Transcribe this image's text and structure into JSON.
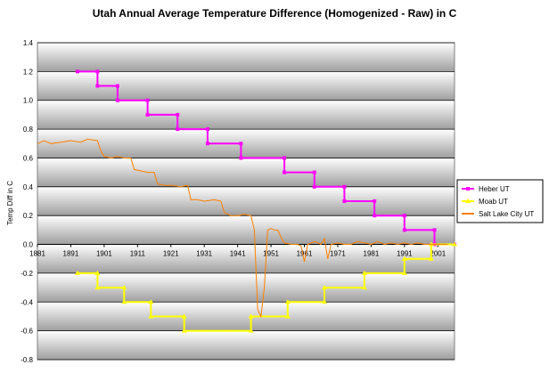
{
  "chart_data": {
    "type": "line",
    "title": "Utah Annual Average Temperature Difference (Homogenized - Raw) in C",
    "xlabel": "",
    "ylabel": "Temp Diff in C",
    "xlim": [
      1881,
      2006
    ],
    "ylim": [
      -0.8,
      1.4
    ],
    "y_ticks": [
      "1.4",
      "1.2",
      "1.0",
      "0.8",
      "0.6",
      "0.4",
      "0.2",
      "0.0",
      "-0.2",
      "-0.4",
      "-0.6",
      "-0.8"
    ],
    "x_ticks": [
      "1881",
      "1891",
      "1901",
      "1911",
      "1921",
      "1931",
      "1941",
      "1951",
      "1961",
      "1971",
      "1981",
      "1991",
      "2001"
    ],
    "grid": true,
    "legend_position": "right",
    "series": [
      {
        "name": "Heber UT",
        "color": "#ff00ff",
        "marker": "square",
        "points": [
          [
            1893,
            1.2
          ],
          [
            1899,
            1.2
          ],
          [
            1899,
            1.1
          ],
          [
            1905,
            1.1
          ],
          [
            1905,
            1.0
          ],
          [
            1914,
            1.0
          ],
          [
            1914,
            0.9
          ],
          [
            1923,
            0.9
          ],
          [
            1923,
            0.8
          ],
          [
            1932,
            0.8
          ],
          [
            1932,
            0.7
          ],
          [
            1942,
            0.7
          ],
          [
            1942,
            0.6
          ],
          [
            1955,
            0.6
          ],
          [
            1955,
            0.5
          ],
          [
            1964,
            0.5
          ],
          [
            1964,
            0.4
          ],
          [
            1973,
            0.4
          ],
          [
            1973,
            0.3
          ],
          [
            1982,
            0.3
          ],
          [
            1982,
            0.2
          ],
          [
            1991,
            0.2
          ],
          [
            1991,
            0.1
          ],
          [
            2000,
            0.1
          ],
          [
            2000,
            0.0
          ],
          [
            2006,
            0.0
          ]
        ]
      },
      {
        "name": "Moab UT",
        "color": "#ffff00",
        "marker": "triangle",
        "points": [
          [
            1893,
            -0.2
          ],
          [
            1899,
            -0.2
          ],
          [
            1899,
            -0.3
          ],
          [
            1907,
            -0.3
          ],
          [
            1907,
            -0.4
          ],
          [
            1915,
            -0.4
          ],
          [
            1915,
            -0.5
          ],
          [
            1925,
            -0.5
          ],
          [
            1925,
            -0.6
          ],
          [
            1945,
            -0.6
          ],
          [
            1945,
            -0.5
          ],
          [
            1956,
            -0.5
          ],
          [
            1956,
            -0.4
          ],
          [
            1967,
            -0.4
          ],
          [
            1967,
            -0.3
          ],
          [
            1979,
            -0.3
          ],
          [
            1979,
            -0.2
          ],
          [
            1991,
            -0.2
          ],
          [
            1991,
            -0.1
          ],
          [
            1999,
            -0.1
          ],
          [
            1999,
            0.0
          ],
          [
            2006,
            0.0
          ]
        ]
      },
      {
        "name": "Salt Lake City UT",
        "color": "#ff8000",
        "marker": "none",
        "points": [
          [
            1881,
            0.7
          ],
          [
            1883,
            0.72
          ],
          [
            1885,
            0.7
          ],
          [
            1888,
            0.71
          ],
          [
            1891,
            0.72
          ],
          [
            1894,
            0.71
          ],
          [
            1896,
            0.73
          ],
          [
            1899,
            0.72
          ],
          [
            1900,
            0.65
          ],
          [
            1901,
            0.61
          ],
          [
            1903,
            0.6
          ],
          [
            1905,
            0.61
          ],
          [
            1907,
            0.6
          ],
          [
            1909,
            0.6
          ],
          [
            1910,
            0.52
          ],
          [
            1912,
            0.51
          ],
          [
            1914,
            0.5
          ],
          [
            1916,
            0.5
          ],
          [
            1917,
            0.42
          ],
          [
            1919,
            0.41
          ],
          [
            1921,
            0.41
          ],
          [
            1924,
            0.4
          ],
          [
            1926,
            0.41
          ],
          [
            1927,
            0.31
          ],
          [
            1929,
            0.31
          ],
          [
            1931,
            0.3
          ],
          [
            1934,
            0.31
          ],
          [
            1936,
            0.3
          ],
          [
            1937,
            0.22
          ],
          [
            1939,
            0.2
          ],
          [
            1941,
            0.2
          ],
          [
            1943,
            0.21
          ],
          [
            1945,
            0.2
          ],
          [
            1946,
            0.1
          ],
          [
            1947,
            -0.45
          ],
          [
            1948,
            -0.5
          ],
          [
            1949,
            -0.3
          ],
          [
            1950,
            0.1
          ],
          [
            1951,
            0.11
          ],
          [
            1952,
            0.1
          ],
          [
            1953,
            0.1
          ],
          [
            1954,
            0.05
          ],
          [
            1955,
            0.01
          ],
          [
            1957,
            0.0
          ],
          [
            1959,
            0.0
          ],
          [
            1960,
            -0.01
          ],
          [
            1961,
            -0.12
          ],
          [
            1962,
            0.0
          ],
          [
            1964,
            0.02
          ],
          [
            1966,
            0.0
          ],
          [
            1967,
            0.04
          ],
          [
            1968,
            -0.1
          ],
          [
            1969,
            0.0
          ],
          [
            1971,
            0.01
          ],
          [
            1973,
            0.0
          ],
          [
            1975,
            0.0
          ],
          [
            1977,
            0.02
          ],
          [
            1979,
            0.01
          ],
          [
            1981,
            0.0
          ],
          [
            1983,
            0.02
          ],
          [
            1985,
            0.0
          ],
          [
            1987,
            0.01
          ],
          [
            1989,
            0.0
          ],
          [
            1991,
            0.01
          ],
          [
            1993,
            0.0
          ],
          [
            1995,
            0.01
          ],
          [
            1997,
            0.0
          ],
          [
            1999,
            0.0
          ],
          [
            2001,
            0.0
          ],
          [
            2004,
            0.0
          ]
        ]
      }
    ]
  }
}
